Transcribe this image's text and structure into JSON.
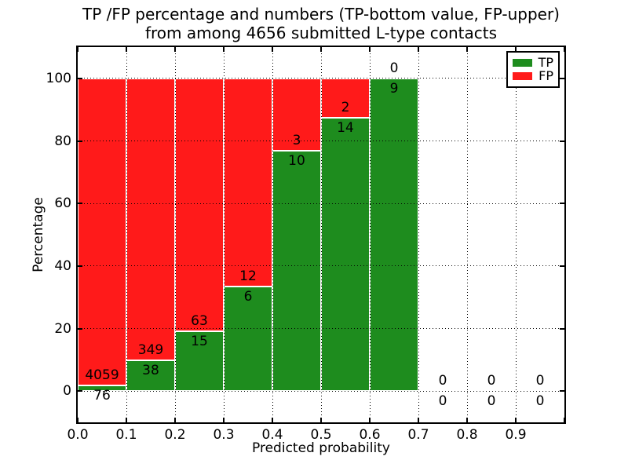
{
  "chart_data": {
    "type": "bar",
    "variant": "stacked-100percent-histogram",
    "title": "TP /FP percentage and numbers (TP-bottom value, FP-upper)",
    "subtitle": "from among 4656 submitted L-type contacts",
    "xlabel": "Predicted probability",
    "ylabel": "Percentage",
    "xlim": [
      0.0,
      1.0
    ],
    "ylim": [
      -10,
      110
    ],
    "grid": true,
    "legend_position": "upper right",
    "xtick_values": [
      0.0,
      0.1,
      0.2,
      0.3,
      0.4,
      0.5,
      0.6,
      0.7,
      0.8,
      0.9,
      1.0
    ],
    "xtick_labels": [
      "0.0",
      "0.1",
      "0.2",
      "0.3",
      "0.4",
      "0.5",
      "0.6",
      "0.7",
      "0.8",
      "0.9",
      ""
    ],
    "ytick_values": [
      0,
      20,
      40,
      60,
      80,
      100
    ],
    "ytick_labels": [
      "0",
      "20",
      "40",
      "60",
      "80",
      "100"
    ],
    "bin_width": 0.1,
    "bin_starts": [
      0.0,
      0.1,
      0.2,
      0.3,
      0.4,
      0.5,
      0.6,
      0.7,
      0.8,
      0.9
    ],
    "series": [
      {
        "name": "TP",
        "color": "#1e8c1e",
        "counts": [
          76,
          38,
          15,
          6,
          10,
          14,
          9,
          0,
          0,
          0
        ]
      },
      {
        "name": "FP",
        "color": "#ff1a1a",
        "counts": [
          4059,
          349,
          63,
          12,
          3,
          2,
          0,
          0,
          0,
          0
        ]
      }
    ],
    "tp_percent_heights": [
      1.84,
      9.82,
      19.23,
      33.33,
      76.92,
      87.5,
      100.0,
      0,
      0,
      0
    ],
    "fp_percent_heights": [
      98.16,
      90.18,
      80.77,
      66.67,
      23.08,
      12.5,
      0.0,
      0,
      0,
      0
    ],
    "bar_edge_color": "#ffffff",
    "axis_color": "#000000"
  }
}
